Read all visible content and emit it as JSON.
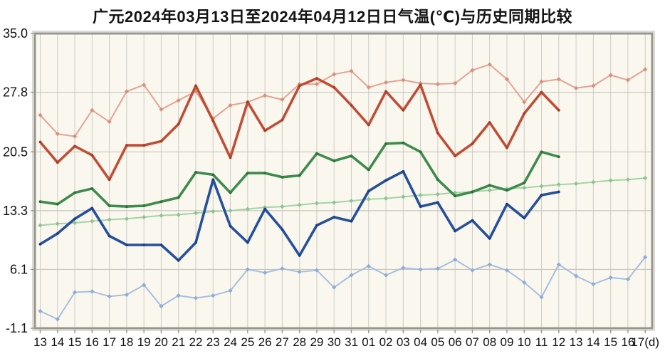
{
  "title": "广元2024年03月13日至2024年04月12日日气温(℃)与历史同期比较",
  "chart_data": {
    "type": "line",
    "title": "广元2024年03月13日至2024年04月12日日气温(℃)与历史同期比较",
    "xlabel": "",
    "ylabel": "",
    "ylim": [
      -1.1,
      35.0
    ],
    "grid": true,
    "legend_position": "none",
    "x_labels": [
      "13",
      "14",
      "15",
      "16",
      "17",
      "18",
      "19",
      "20",
      "21",
      "22",
      "23",
      "24",
      "25",
      "26",
      "27",
      "28",
      "29",
      "30",
      "31",
      "01",
      "02",
      "03",
      "04",
      "05",
      "06",
      "07",
      "08",
      "09",
      "10",
      "11",
      "12",
      "13",
      "14",
      "15",
      "16",
      "17(d)"
    ],
    "y_ticks": [
      35.0,
      27.8,
      20.5,
      13.3,
      6.1,
      -1.1
    ],
    "y_tick_labels": [
      "35.0",
      "27.8",
      "20.5",
      "13.3",
      "6.1",
      "-1.1"
    ],
    "colors": {
      "plot_bg": "#FAF7EE",
      "grid": "#CDCDC5",
      "grid_h": "#C6C6BE",
      "border": "#96968F",
      "outer_border": "#DCDCD4",
      "title_text": "#141414",
      "axis_text": "#111111"
    },
    "series": [
      {
        "name": "historical-high",
        "color": "#E2A493",
        "marker_color": "#D88F7B",
        "width": 2,
        "marker": "diamond",
        "values": [
          25.0,
          22.7,
          22.4,
          25.6,
          24.2,
          27.9,
          28.7,
          25.7,
          26.8,
          27.9,
          24.6,
          26.2,
          26.6,
          27.4,
          26.9,
          28.8,
          28.8,
          30.0,
          30.4,
          28.4,
          29.0,
          29.3,
          28.9,
          28.8,
          28.9,
          30.5,
          31.2,
          29.4,
          26.6,
          29.1,
          29.4,
          28.3,
          28.6,
          29.9,
          29.3,
          30.6
        ]
      },
      {
        "name": "historical-mean",
        "color": "#A6D3A8",
        "marker_color": "#8DC392",
        "width": 2,
        "marker": "diamond",
        "values": [
          11.5,
          11.7,
          11.8,
          12.0,
          12.2,
          12.3,
          12.5,
          12.7,
          12.8,
          13.0,
          13.2,
          13.3,
          13.5,
          13.7,
          13.8,
          14.0,
          14.2,
          14.3,
          14.5,
          14.7,
          14.8,
          15.0,
          15.2,
          15.3,
          15.5,
          15.6,
          15.8,
          16.0,
          16.1,
          16.3,
          16.5,
          16.6,
          16.8,
          17.0,
          17.1,
          17.3
        ]
      },
      {
        "name": "historical-low",
        "color": "#A7BFE1",
        "marker_color": "#8FACD6",
        "width": 2,
        "marker": "diamond",
        "values": [
          1.0,
          0.0,
          3.3,
          3.4,
          2.8,
          3.0,
          4.2,
          1.6,
          2.9,
          2.6,
          2.9,
          3.5,
          6.1,
          5.7,
          6.2,
          5.8,
          6.0,
          3.9,
          5.4,
          6.5,
          5.4,
          6.3,
          6.1,
          6.2,
          7.3,
          6.0,
          6.7,
          6.0,
          4.5,
          2.7,
          6.7,
          5.3,
          4.3,
          5.1,
          4.9,
          7.6
        ]
      },
      {
        "name": "actual-mean",
        "color": "#3E8B4E",
        "marker_color": "#2D6E3C",
        "width": 3.6,
        "marker": "dot",
        "values": [
          14.4,
          14.1,
          15.5,
          16.0,
          13.9,
          13.8,
          13.9,
          14.4,
          14.9,
          18.0,
          17.7,
          15.5,
          17.9,
          17.9,
          17.4,
          17.6,
          20.3,
          19.4,
          20.0,
          18.3,
          21.5,
          21.6,
          20.5,
          17.1,
          15.1,
          15.6,
          16.4,
          15.8,
          16.7,
          20.5,
          19.9
        ]
      },
      {
        "name": "actual-low",
        "color": "#27509B",
        "marker_color": "#1C3E7F",
        "width": 3.6,
        "marker": "dot",
        "values": [
          9.2,
          10.5,
          12.3,
          13.6,
          10.2,
          9.1,
          9.1,
          9.1,
          7.2,
          9.4,
          17.1,
          11.4,
          9.4,
          13.5,
          11.0,
          7.8,
          11.5,
          12.5,
          12.0,
          15.7,
          17.0,
          18.1,
          13.8,
          14.3,
          10.8,
          12.1,
          9.9,
          14.1,
          12.4,
          15.2,
          15.6
        ]
      },
      {
        "name": "actual-high",
        "color": "#BF4E37",
        "marker_color": "#A63C26",
        "width": 3.6,
        "marker": "dot",
        "values": [
          21.7,
          19.2,
          21.2,
          20.1,
          17.1,
          21.3,
          21.3,
          21.8,
          23.9,
          28.6,
          24.3,
          19.8,
          26.6,
          23.1,
          24.4,
          28.6,
          29.5,
          28.4,
          26.2,
          23.8,
          27.9,
          25.6,
          28.7,
          22.8,
          20.0,
          21.5,
          24.1,
          21.0,
          25.2,
          27.8,
          25.6
        ]
      }
    ]
  }
}
